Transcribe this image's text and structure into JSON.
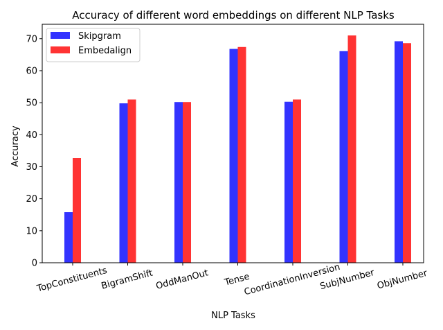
{
  "chart_data": {
    "type": "bar",
    "title": "Accuracy of different word embeddings on different NLP Tasks",
    "xlabel": "NLP Tasks",
    "ylabel": "Accuracy",
    "categories": [
      "TopConstituents",
      "BigramShift",
      "OddManOut",
      "Tense",
      "CoordinationInversion",
      "SubjNumber",
      "ObjNumber"
    ],
    "series": [
      {
        "name": "Skipgram",
        "color": "#3333ff",
        "values": [
          15.8,
          49.8,
          50.2,
          66.8,
          50.3,
          66.1,
          69.2
        ]
      },
      {
        "name": "Embedalign",
        "color": "#ff3333",
        "values": [
          32.7,
          51.0,
          50.2,
          67.4,
          51.0,
          71.0,
          68.6
        ]
      }
    ],
    "ylim": [
      0,
      74.5
    ],
    "yticks": [
      0,
      10,
      20,
      30,
      40,
      50,
      60,
      70
    ],
    "xtick_rotation_deg": -15,
    "grid": false,
    "legend_position": "top-left"
  }
}
